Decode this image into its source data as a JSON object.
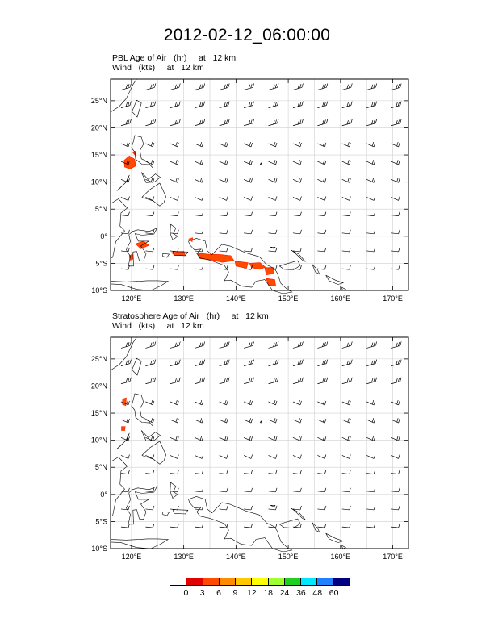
{
  "title": "2012-02-12_06:00:00",
  "panels": [
    {
      "id": "pbl",
      "caption_line1": "PBL Age of Air   (hr)     at   12 km",
      "caption_line2": "Wind   (kts)     at   12 km"
    },
    {
      "id": "strat",
      "caption_line1": "Stratosphere Age of Air   (hr)     at   12 km",
      "caption_line2": "Wind   (kts)     at   12 km"
    }
  ],
  "lat_labels": [
    "25°N",
    "20°N",
    "15°N",
    "10°N",
    "5°N",
    "0°",
    "5°S",
    "10°S"
  ],
  "lon_labels": [
    "120°E",
    "130°E",
    "140°E",
    "150°E",
    "160°E",
    "170°E"
  ],
  "colorbar": {
    "labels": [
      "0",
      "3",
      "6",
      "9",
      "12",
      "18",
      "24",
      "36",
      "48",
      "60"
    ],
    "colors": [
      "#ffffff",
      "#e00000",
      "#ff4a00",
      "#ff8c00",
      "#ffc800",
      "#ffff00",
      "#a0ff30",
      "#20d020",
      "#00e8ff",
      "#2080ff",
      "#000080"
    ]
  },
  "map_data": {
    "lat_range": [
      -10,
      29
    ],
    "lon_range": [
      116,
      173
    ],
    "wind_field": "westerly winds over the domain, stronger in the north",
    "pbl_age_patches": "orange/red patches near Luzon (~14N,120E) and along New Guinea / Maluku (0 to 9S, 120E-148E)",
    "strat_age_patches": "small orange patches near 17N,119E and 12N,118E"
  }
}
